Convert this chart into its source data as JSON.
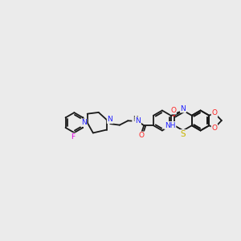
{
  "bg_color": "#ebebeb",
  "bond_color": "#1a1a1a",
  "atom_colors": {
    "N": "#2020ff",
    "O": "#ff2020",
    "S": "#c8b400",
    "F": "#e000e0",
    "H": "#1a1a1a",
    "C": "#1a1a1a"
  },
  "font_size": 6.5,
  "line_width": 1.3
}
